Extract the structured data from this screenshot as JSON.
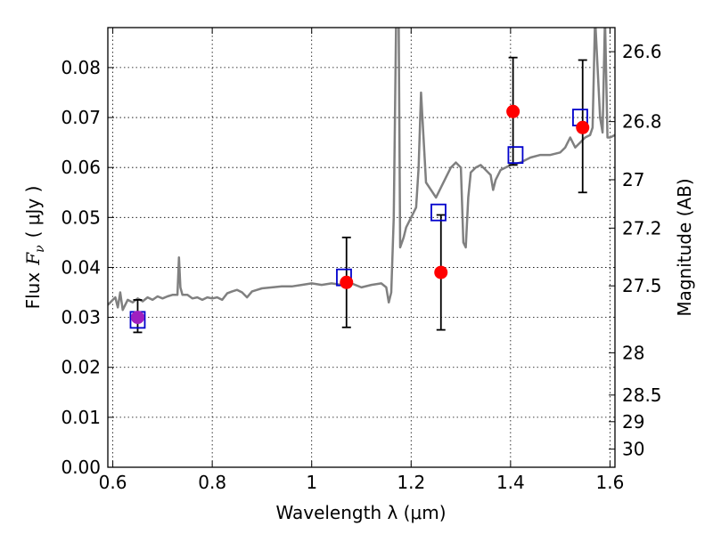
{
  "chart_data": {
    "type": "scatter",
    "xlabel": "Wavelength  λ (μm)",
    "ylabel": "Flux  Fν  ( μJy )",
    "ylabel_parts": {
      "prefix": "Flux",
      "symbol": "F",
      "subscript": "ν",
      "unit": "( μJy )"
    },
    "ylabel_right": "Magnitude (AB)",
    "xlim": [
      0.59,
      1.61
    ],
    "ylim": [
      0.0,
      0.088
    ],
    "x_ticks": [
      "0.6",
      "0.8",
      "1",
      "1.2",
      "1.4",
      "1.6"
    ],
    "x_tick_values": [
      0.6,
      0.8,
      1.0,
      1.2,
      1.4,
      1.6
    ],
    "y_ticks": [
      "0.00",
      "0.01",
      "0.02",
      "0.03",
      "0.04",
      "0.05",
      "0.06",
      "0.07",
      "0.08"
    ],
    "y_tick_values": [
      0.0,
      0.01,
      0.02,
      0.03,
      0.04,
      0.05,
      0.06,
      0.07,
      0.08
    ],
    "right_ticks": [
      "26.6",
      "26.8",
      "27",
      "27.2",
      "27.5",
      "28",
      "28.5",
      "29",
      "30"
    ],
    "right_tick_values": [
      26.6,
      26.8,
      27.0,
      27.2,
      27.5,
      28.0,
      28.5,
      29.0,
      30.0
    ],
    "grid": true,
    "colors": {
      "model": "#808080",
      "observed": "#ff0000",
      "synthetic": "#0000cc",
      "errorbar": "#000000"
    },
    "series": [
      {
        "marker": "line",
        "points": [
          [
            0.59,
            0.0325
          ],
          [
            0.6,
            0.0335
          ],
          [
            0.605,
            0.034
          ],
          [
            0.61,
            0.032
          ],
          [
            0.615,
            0.035
          ],
          [
            0.62,
            0.0315
          ],
          [
            0.63,
            0.0335
          ],
          [
            0.64,
            0.033
          ],
          [
            0.65,
            0.0338
          ],
          [
            0.66,
            0.0332
          ],
          [
            0.67,
            0.034
          ],
          [
            0.68,
            0.0335
          ],
          [
            0.69,
            0.0342
          ],
          [
            0.7,
            0.0338
          ],
          [
            0.71,
            0.0342
          ],
          [
            0.72,
            0.0345
          ],
          [
            0.73,
            0.0345
          ],
          [
            0.733,
            0.042
          ],
          [
            0.736,
            0.036
          ],
          [
            0.74,
            0.0345
          ],
          [
            0.75,
            0.0345
          ],
          [
            0.76,
            0.0338
          ],
          [
            0.77,
            0.034
          ],
          [
            0.78,
            0.0335
          ],
          [
            0.79,
            0.034
          ],
          [
            0.8,
            0.0338
          ],
          [
            0.81,
            0.034
          ],
          [
            0.82,
            0.0335
          ],
          [
            0.83,
            0.0348
          ],
          [
            0.84,
            0.0352
          ],
          [
            0.85,
            0.0355
          ],
          [
            0.86,
            0.035
          ],
          [
            0.87,
            0.034
          ],
          [
            0.88,
            0.0352
          ],
          [
            0.89,
            0.0355
          ],
          [
            0.9,
            0.0358
          ],
          [
            0.92,
            0.036
          ],
          [
            0.94,
            0.0362
          ],
          [
            0.96,
            0.0362
          ],
          [
            0.98,
            0.0365
          ],
          [
            1.0,
            0.0368
          ],
          [
            1.02,
            0.0365
          ],
          [
            1.04,
            0.0368
          ],
          [
            1.06,
            0.0365
          ],
          [
            1.08,
            0.0368
          ],
          [
            1.1,
            0.036
          ],
          [
            1.12,
            0.0365
          ],
          [
            1.14,
            0.0368
          ],
          [
            1.15,
            0.036
          ],
          [
            1.155,
            0.033
          ],
          [
            1.16,
            0.035
          ],
          [
            1.165,
            0.05
          ],
          [
            1.17,
            0.09
          ],
          [
            1.175,
            0.09
          ],
          [
            1.178,
            0.044
          ],
          [
            1.185,
            0.046
          ],
          [
            1.19,
            0.048
          ],
          [
            1.2,
            0.05
          ],
          [
            1.21,
            0.052
          ],
          [
            1.215,
            0.06
          ],
          [
            1.22,
            0.075
          ],
          [
            1.225,
            0.066
          ],
          [
            1.23,
            0.057
          ],
          [
            1.24,
            0.0555
          ],
          [
            1.25,
            0.054
          ],
          [
            1.26,
            0.056
          ],
          [
            1.27,
            0.058
          ],
          [
            1.28,
            0.06
          ],
          [
            1.29,
            0.061
          ],
          [
            1.3,
            0.06
          ],
          [
            1.305,
            0.045
          ],
          [
            1.31,
            0.044
          ],
          [
            1.315,
            0.054
          ],
          [
            1.32,
            0.059
          ],
          [
            1.33,
            0.06
          ],
          [
            1.34,
            0.0605
          ],
          [
            1.35,
            0.0595
          ],
          [
            1.36,
            0.0585
          ],
          [
            1.365,
            0.0555
          ],
          [
            1.37,
            0.0575
          ],
          [
            1.38,
            0.0595
          ],
          [
            1.39,
            0.06
          ],
          [
            1.4,
            0.0605
          ],
          [
            1.42,
            0.061
          ],
          [
            1.44,
            0.062
          ],
          [
            1.46,
            0.0625
          ],
          [
            1.48,
            0.0625
          ],
          [
            1.5,
            0.063
          ],
          [
            1.51,
            0.064
          ],
          [
            1.52,
            0.066
          ],
          [
            1.53,
            0.064
          ],
          [
            1.54,
            0.065
          ],
          [
            1.55,
            0.066
          ],
          [
            1.56,
            0.0665
          ],
          [
            1.565,
            0.068
          ],
          [
            1.57,
            0.09
          ],
          [
            1.575,
            0.08
          ],
          [
            1.58,
            0.07
          ],
          [
            1.585,
            0.067
          ],
          [
            1.59,
            0.09
          ],
          [
            1.595,
            0.066
          ],
          [
            1.6,
            0.066
          ],
          [
            1.61,
            0.0665
          ]
        ]
      },
      {
        "marker": "circle",
        "points": [
          {
            "x": 0.65,
            "y": 0.03,
            "ylo": 0.027,
            "yhi": 0.0335
          },
          {
            "x": 1.07,
            "y": 0.037,
            "ylo": 0.028,
            "yhi": 0.046
          },
          {
            "x": 1.26,
            "y": 0.039,
            "ylo": 0.0275,
            "yhi": 0.0505
          },
          {
            "x": 1.405,
            "y": 0.0712,
            "ylo": 0.0605,
            "yhi": 0.082
          },
          {
            "x": 1.545,
            "y": 0.068,
            "ylo": 0.055,
            "yhi": 0.0815
          }
        ]
      },
      {
        "marker": "square",
        "points": [
          {
            "x": 0.65,
            "y": 0.0295
          },
          {
            "x": 1.065,
            "y": 0.038
          },
          {
            "x": 1.255,
            "y": 0.051
          },
          {
            "x": 1.41,
            "y": 0.0625
          },
          {
            "x": 1.54,
            "y": 0.07
          }
        ]
      }
    ]
  }
}
